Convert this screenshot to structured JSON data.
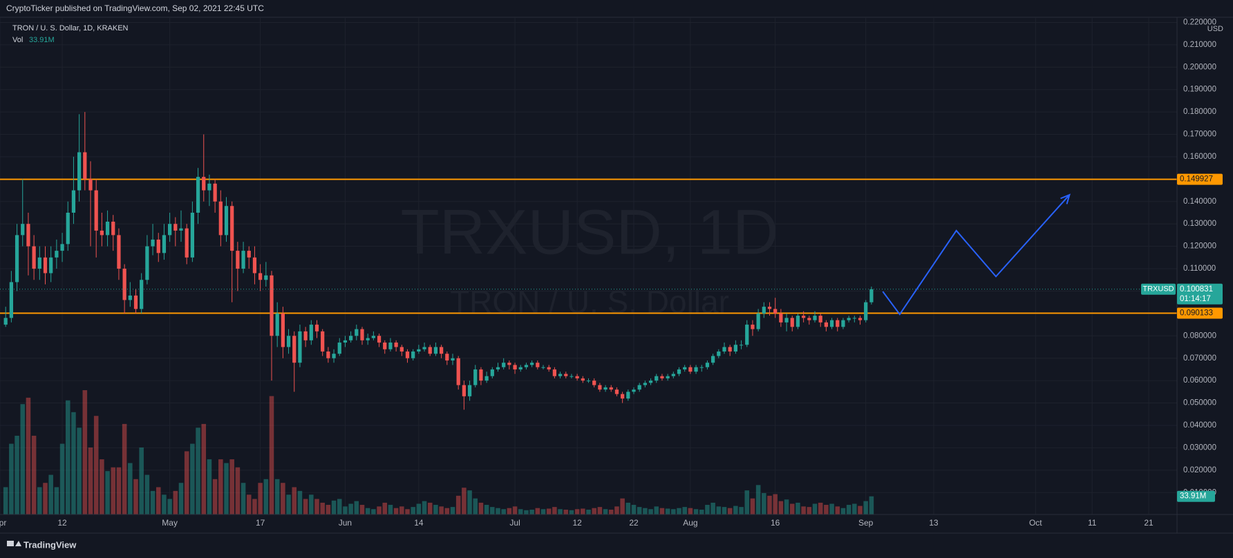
{
  "header": "CryptoTicker published on TradingView.com, Sep 02, 2021 22:45 UTC",
  "footer_brand": "TradingView",
  "chart_data": {
    "type": "candlestick",
    "title": "TRON / U. S. Dollar, 1D, KRAKEN",
    "watermark": "TRXUSD, 1D",
    "watermark_sub": "TRON / U. S. Dollar",
    "symbol": "TRXUSD",
    "currency": "USD",
    "volume_title": "Vol",
    "volume_label": "33.91M",
    "countdown": "01:14:17",
    "up_color": "#26a69a",
    "down_color": "#ef5350",
    "x": [
      "04-02",
      "04-03",
      "04-04",
      "04-05",
      "04-06",
      "04-07",
      "04-08",
      "04-09",
      "04-10",
      "04-11",
      "04-12",
      "04-13",
      "04-14",
      "04-15",
      "04-16",
      "04-17",
      "04-18",
      "04-19",
      "04-20",
      "04-21",
      "04-22",
      "04-23",
      "04-24",
      "04-25",
      "04-26",
      "04-27",
      "04-28",
      "04-29",
      "04-30",
      "05-01",
      "05-02",
      "05-03",
      "05-04",
      "05-05",
      "05-06",
      "05-07",
      "05-08",
      "05-09",
      "05-10",
      "05-11",
      "05-12",
      "05-13",
      "05-14",
      "05-15",
      "05-16",
      "05-17",
      "05-18",
      "05-19",
      "05-20",
      "05-21",
      "05-22",
      "05-23",
      "05-24",
      "05-25",
      "05-26",
      "05-27",
      "05-28",
      "05-29",
      "05-30",
      "05-31",
      "06-01",
      "06-02",
      "06-03",
      "06-04",
      "06-05",
      "06-06",
      "06-07",
      "06-08",
      "06-09",
      "06-10",
      "06-11",
      "06-12",
      "06-13",
      "06-14",
      "06-15",
      "06-16",
      "06-17",
      "06-18",
      "06-19",
      "06-20",
      "06-21",
      "06-22",
      "06-23",
      "06-24",
      "06-25",
      "06-26",
      "06-27",
      "06-28",
      "06-29",
      "06-30",
      "07-01",
      "07-02",
      "07-03",
      "07-04",
      "07-05",
      "07-06",
      "07-07",
      "07-08",
      "07-09",
      "07-10",
      "07-11",
      "07-12",
      "07-13",
      "07-14",
      "07-15",
      "07-16",
      "07-17",
      "07-18",
      "07-19",
      "07-20",
      "07-21",
      "07-22",
      "07-23",
      "07-24",
      "07-25",
      "07-26",
      "07-27",
      "07-28",
      "07-29",
      "07-30",
      "07-31",
      "08-01",
      "08-02",
      "08-03",
      "08-04",
      "08-05",
      "08-06",
      "08-07",
      "08-08",
      "08-09",
      "08-10",
      "08-11",
      "08-12",
      "08-13",
      "08-14",
      "08-15",
      "08-16",
      "08-17",
      "08-18",
      "08-19",
      "08-20",
      "08-21",
      "08-22",
      "08-23",
      "08-24",
      "08-25",
      "08-26",
      "08-27",
      "08-28",
      "08-29",
      "08-30",
      "08-31",
      "09-01",
      "09-02"
    ],
    "open": [
      0.085,
      0.088,
      0.104,
      0.125,
      0.13,
      0.12,
      0.11,
      0.115,
      0.108,
      0.115,
      0.118,
      0.121,
      0.135,
      0.145,
      0.162,
      0.15,
      0.145,
      0.127,
      0.125,
      0.131,
      0.125,
      0.11,
      0.096,
      0.098,
      0.092,
      0.105,
      0.12,
      0.123,
      0.117,
      0.125,
      0.13,
      0.127,
      0.128,
      0.115,
      0.135,
      0.151,
      0.145,
      0.148,
      0.14,
      0.125,
      0.138,
      0.118,
      0.11,
      0.118,
      0.115,
      0.108,
      0.105,
      0.107,
      0.08,
      0.09,
      0.075,
      0.08,
      0.068,
      0.082,
      0.078,
      0.085,
      0.082,
      0.073,
      0.07,
      0.072,
      0.077,
      0.078,
      0.08,
      0.083,
      0.078,
      0.079,
      0.08,
      0.077,
      0.074,
      0.077,
      0.075,
      0.073,
      0.07,
      0.073,
      0.074,
      0.075,
      0.072,
      0.075,
      0.072,
      0.069,
      0.07,
      0.058,
      0.053,
      0.058,
      0.065,
      0.06,
      0.062,
      0.065,
      0.066,
      0.068,
      0.067,
      0.065,
      0.066,
      0.067,
      0.068,
      0.066,
      0.066,
      0.065,
      0.062,
      0.063,
      0.062,
      0.062,
      0.061,
      0.06,
      0.06,
      0.058,
      0.056,
      0.057,
      0.056,
      0.054,
      0.052,
      0.055,
      0.056,
      0.058,
      0.059,
      0.06,
      0.062,
      0.061,
      0.062,
      0.063,
      0.065,
      0.066,
      0.064,
      0.066,
      0.066,
      0.068,
      0.071,
      0.073,
      0.075,
      0.073,
      0.076,
      0.076,
      0.085,
      0.083,
      0.09,
      0.093,
      0.092,
      0.09,
      0.086,
      0.088,
      0.084,
      0.089,
      0.088,
      0.087,
      0.089,
      0.086,
      0.084,
      0.087,
      0.084,
      0.087,
      0.088,
      0.088,
      0.087,
      0.095
    ],
    "high": [
      0.093,
      0.109,
      0.13,
      0.15,
      0.135,
      0.125,
      0.12,
      0.12,
      0.12,
      0.123,
      0.126,
      0.14,
      0.16,
      0.179,
      0.18,
      0.158,
      0.15,
      0.135,
      0.136,
      0.134,
      0.128,
      0.112,
      0.104,
      0.101,
      0.108,
      0.125,
      0.13,
      0.126,
      0.13,
      0.135,
      0.133,
      0.136,
      0.13,
      0.14,
      0.155,
      0.17,
      0.152,
      0.15,
      0.145,
      0.142,
      0.14,
      0.122,
      0.122,
      0.12,
      0.12,
      0.112,
      0.113,
      0.109,
      0.095,
      0.093,
      0.083,
      0.082,
      0.085,
      0.084,
      0.087,
      0.087,
      0.083,
      0.075,
      0.074,
      0.079,
      0.08,
      0.082,
      0.085,
      0.084,
      0.081,
      0.082,
      0.081,
      0.078,
      0.079,
      0.078,
      0.076,
      0.074,
      0.074,
      0.076,
      0.077,
      0.076,
      0.077,
      0.076,
      0.073,
      0.072,
      0.071,
      0.06,
      0.06,
      0.067,
      0.066,
      0.064,
      0.066,
      0.068,
      0.07,
      0.069,
      0.068,
      0.067,
      0.068,
      0.069,
      0.069,
      0.067,
      0.067,
      0.066,
      0.064,
      0.064,
      0.063,
      0.063,
      0.062,
      0.061,
      0.061,
      0.059,
      0.058,
      0.058,
      0.057,
      0.055,
      0.056,
      0.057,
      0.059,
      0.06,
      0.061,
      0.063,
      0.063,
      0.063,
      0.064,
      0.066,
      0.067,
      0.067,
      0.067,
      0.067,
      0.069,
      0.072,
      0.074,
      0.077,
      0.076,
      0.078,
      0.078,
      0.087,
      0.087,
      0.092,
      0.095,
      0.095,
      0.097,
      0.092,
      0.09,
      0.089,
      0.09,
      0.091,
      0.089,
      0.091,
      0.09,
      0.087,
      0.088,
      0.088,
      0.088,
      0.089,
      0.089,
      0.089,
      0.096,
      0.102
    ],
    "low": [
      0.084,
      0.086,
      0.1,
      0.12,
      0.107,
      0.105,
      0.105,
      0.103,
      0.104,
      0.11,
      0.113,
      0.118,
      0.13,
      0.14,
      0.145,
      0.12,
      0.115,
      0.12,
      0.12,
      0.118,
      0.105,
      0.09,
      0.093,
      0.09,
      0.09,
      0.103,
      0.116,
      0.113,
      0.114,
      0.122,
      0.12,
      0.122,
      0.112,
      0.113,
      0.13,
      0.14,
      0.138,
      0.135,
      0.12,
      0.122,
      0.095,
      0.1,
      0.108,
      0.11,
      0.103,
      0.1,
      0.102,
      0.06,
      0.075,
      0.07,
      0.072,
      0.055,
      0.066,
      0.075,
      0.076,
      0.079,
      0.071,
      0.068,
      0.068,
      0.071,
      0.075,
      0.077,
      0.078,
      0.076,
      0.076,
      0.078,
      0.075,
      0.072,
      0.073,
      0.073,
      0.071,
      0.068,
      0.069,
      0.072,
      0.073,
      0.071,
      0.071,
      0.07,
      0.067,
      0.067,
      0.056,
      0.047,
      0.051,
      0.057,
      0.058,
      0.059,
      0.061,
      0.064,
      0.065,
      0.065,
      0.063,
      0.064,
      0.065,
      0.066,
      0.065,
      0.065,
      0.064,
      0.061,
      0.061,
      0.061,
      0.061,
      0.06,
      0.059,
      0.059,
      0.057,
      0.055,
      0.055,
      0.055,
      0.053,
      0.05,
      0.051,
      0.054,
      0.055,
      0.057,
      0.058,
      0.059,
      0.06,
      0.06,
      0.061,
      0.062,
      0.064,
      0.063,
      0.063,
      0.064,
      0.065,
      0.067,
      0.07,
      0.072,
      0.071,
      0.072,
      0.074,
      0.075,
      0.08,
      0.082,
      0.088,
      0.089,
      0.088,
      0.084,
      0.082,
      0.082,
      0.083,
      0.086,
      0.085,
      0.086,
      0.084,
      0.082,
      0.083,
      0.082,
      0.083,
      0.086,
      0.086,
      0.085,
      0.086,
      0.094
    ],
    "close": [
      0.088,
      0.104,
      0.125,
      0.13,
      0.12,
      0.11,
      0.115,
      0.108,
      0.115,
      0.118,
      0.121,
      0.135,
      0.145,
      0.162,
      0.15,
      0.145,
      0.127,
      0.125,
      0.131,
      0.125,
      0.11,
      0.096,
      0.098,
      0.092,
      0.105,
      0.12,
      0.123,
      0.117,
      0.125,
      0.13,
      0.127,
      0.128,
      0.115,
      0.135,
      0.151,
      0.145,
      0.148,
      0.14,
      0.125,
      0.138,
      0.118,
      0.11,
      0.118,
      0.115,
      0.108,
      0.105,
      0.107,
      0.08,
      0.09,
      0.075,
      0.08,
      0.068,
      0.082,
      0.078,
      0.085,
      0.082,
      0.073,
      0.07,
      0.072,
      0.077,
      0.078,
      0.08,
      0.083,
      0.078,
      0.079,
      0.08,
      0.077,
      0.074,
      0.077,
      0.075,
      0.073,
      0.07,
      0.073,
      0.074,
      0.075,
      0.072,
      0.075,
      0.072,
      0.069,
      0.07,
      0.058,
      0.053,
      0.058,
      0.065,
      0.06,
      0.062,
      0.065,
      0.066,
      0.068,
      0.067,
      0.065,
      0.066,
      0.067,
      0.068,
      0.066,
      0.066,
      0.065,
      0.062,
      0.063,
      0.062,
      0.062,
      0.061,
      0.06,
      0.06,
      0.058,
      0.056,
      0.057,
      0.056,
      0.054,
      0.052,
      0.055,
      0.056,
      0.058,
      0.059,
      0.06,
      0.062,
      0.061,
      0.062,
      0.063,
      0.065,
      0.066,
      0.064,
      0.066,
      0.066,
      0.068,
      0.071,
      0.073,
      0.075,
      0.073,
      0.076,
      0.076,
      0.085,
      0.083,
      0.09,
      0.093,
      0.092,
      0.09,
      0.086,
      0.088,
      0.084,
      0.089,
      0.088,
      0.087,
      0.089,
      0.086,
      0.084,
      0.087,
      0.084,
      0.087,
      0.088,
      0.088,
      0.087,
      0.095,
      0.100831
    ],
    "volume": [
      51,
      132,
      147,
      206,
      218,
      147,
      51,
      59,
      74,
      51,
      132,
      213,
      191,
      162,
      232,
      125,
      184,
      103,
      81,
      88,
      88,
      169,
      96,
      66,
      125,
      74,
      44,
      51,
      37,
      29,
      44,
      59,
      118,
      132,
      162,
      169,
      103,
      66,
      103,
      96,
      103,
      88,
      59,
      37,
      29,
      59,
      66,
      221,
      66,
      59,
      37,
      51,
      44,
      29,
      37,
      29,
      22,
      18,
      26,
      29,
      15,
      20,
      25,
      18,
      12,
      10,
      15,
      22,
      18,
      12,
      15,
      10,
      14,
      20,
      25,
      22,
      18,
      15,
      12,
      14,
      35,
      50,
      45,
      30,
      22,
      18,
      14,
      12,
      10,
      12,
      15,
      10,
      8,
      9,
      12,
      10,
      11,
      14,
      10,
      9,
      8,
      10,
      11,
      9,
      12,
      14,
      10,
      9,
      15,
      30,
      22,
      18,
      14,
      12,
      10,
      15,
      12,
      11,
      10,
      12,
      14,
      12,
      10,
      9,
      18,
      22,
      15,
      14,
      12,
      16,
      14,
      45,
      30,
      55,
      40,
      35,
      38,
      25,
      28,
      20,
      22,
      15,
      14,
      20,
      22,
      18,
      20,
      15,
      12,
      18,
      20,
      16,
      25,
      33.91
    ],
    "levels": [
      {
        "value": 0.149927,
        "color": "#ff9800"
      },
      {
        "value": 0.090133,
        "color": "#ff9800"
      }
    ],
    "projection": {
      "x": [
        "09-04",
        "09-07",
        "09-17",
        "09-24",
        "10-07"
      ],
      "y": [
        0.0998,
        0.0896,
        0.127,
        0.1065,
        0.143
      ],
      "color": "#2962ff"
    },
    "xlim": [
      "04-01",
      "10-26"
    ],
    "xticks": [
      {
        "value": "04-01",
        "label": "Apr"
      },
      {
        "value": "04-12",
        "label": "12"
      },
      {
        "value": "05-01",
        "label": "May"
      },
      {
        "value": "05-17",
        "label": "17"
      },
      {
        "value": "06-01",
        "label": "Jun"
      },
      {
        "value": "06-14",
        "label": "14"
      },
      {
        "value": "07-01",
        "label": "Jul"
      },
      {
        "value": "07-12",
        "label": "12"
      },
      {
        "value": "07-22",
        "label": "22"
      },
      {
        "value": "08-01",
        "label": "Aug"
      },
      {
        "value": "08-16",
        "label": "16"
      },
      {
        "value": "09-01",
        "label": "Sep"
      },
      {
        "value": "09-13",
        "label": "13"
      },
      {
        "value": "10-01",
        "label": "Oct"
      },
      {
        "value": "10-11",
        "label": "11"
      },
      {
        "value": "10-21",
        "label": "21"
      }
    ],
    "ylim": [
      0.0002,
      0.2223
    ],
    "yticks": [
      {
        "value": 0.01,
        "label": "0.010000"
      },
      {
        "value": 0.02,
        "label": "0.020000"
      },
      {
        "value": 0.03,
        "label": "0.030000"
      },
      {
        "value": 0.04,
        "label": "0.040000"
      },
      {
        "value": 0.05,
        "label": "0.050000"
      },
      {
        "value": 0.06,
        "label": "0.060000"
      },
      {
        "value": 0.07,
        "label": "0.070000"
      },
      {
        "value": 0.08,
        "label": "0.080000"
      },
      {
        "value": 0.09,
        "label": "0.090000"
      },
      {
        "value": 0.1,
        "label": "0.100000"
      },
      {
        "value": 0.11,
        "label": "0.110000"
      },
      {
        "value": 0.12,
        "label": "0.120000"
      },
      {
        "value": 0.13,
        "label": "0.130000"
      },
      {
        "value": 0.14,
        "label": "0.140000"
      },
      {
        "value": 0.15,
        "label": "0.150000"
      },
      {
        "value": 0.16,
        "label": "0.160000"
      },
      {
        "value": 0.17,
        "label": "0.170000"
      },
      {
        "value": 0.18,
        "label": "0.180000"
      },
      {
        "value": 0.19,
        "label": "0.190000"
      },
      {
        "value": 0.2,
        "label": "0.200000"
      },
      {
        "value": 0.21,
        "label": "0.210000"
      },
      {
        "value": 0.22,
        "label": "0.220000"
      }
    ],
    "grid": true
  }
}
